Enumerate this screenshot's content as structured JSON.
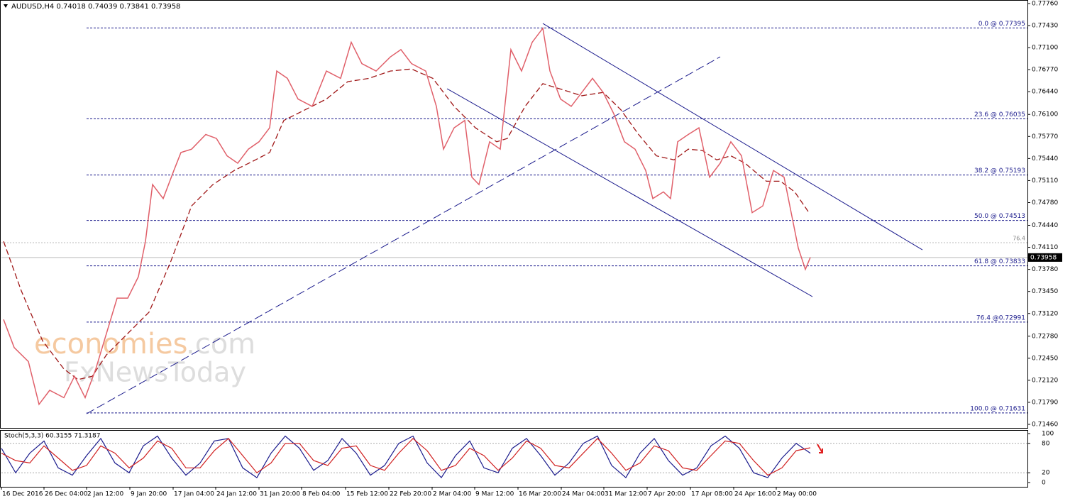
{
  "chart_data": [
    {
      "type": "line",
      "title": "AUDUSD,H4  0.74018 0.74039 0.73841 0.73958",
      "color": "#e0606a",
      "xlim": [
        0,
        1446
      ],
      "ylim": [
        0.71407,
        0.77813
      ],
      "yticks": [
        {
          "value": 0.7776,
          "label": "0.77760"
        },
        {
          "value": 0.7743,
          "label": "0.77430"
        },
        {
          "value": 0.771,
          "label": "0.77100"
        },
        {
          "value": 0.7677,
          "label": "0.76770"
        },
        {
          "value": 0.7644,
          "label": "0.76440"
        },
        {
          "value": 0.761,
          "label": "0.76100"
        },
        {
          "value": 0.7577,
          "label": "0.75770"
        },
        {
          "value": 0.7544,
          "label": "0.75440"
        },
        {
          "value": 0.7511,
          "label": "0.75110"
        },
        {
          "value": 0.7478,
          "label": "0.74780"
        },
        {
          "value": 0.7444,
          "label": "0.74440"
        },
        {
          "value": 0.7411,
          "label": "0.74110"
        },
        {
          "value": 0.7378,
          "label": "0.73780"
        },
        {
          "value": 0.7345,
          "label": "0.73450"
        },
        {
          "value": 0.7312,
          "label": "0.73120"
        },
        {
          "value": 0.7278,
          "label": "0.72780"
        },
        {
          "value": 0.7245,
          "label": "0.72450"
        },
        {
          "value": 0.7212,
          "label": "0.72120"
        },
        {
          "value": 0.7179,
          "label": "0.71790"
        },
        {
          "value": 0.7146,
          "label": "0.71460"
        }
      ],
      "x": [
        3,
        18,
        38,
        53,
        68,
        88,
        103,
        118,
        133,
        148,
        163,
        178,
        193,
        203,
        213,
        228,
        243,
        253,
        268,
        288,
        303,
        318,
        333,
        348,
        363,
        378,
        388,
        403,
        418,
        438,
        458,
        478,
        493,
        508,
        528,
        548,
        563,
        578,
        598,
        613,
        623,
        638,
        653,
        663,
        673,
        688,
        703,
        718,
        733,
        748,
        763,
        773,
        788,
        803,
        818,
        833,
        848,
        863,
        878,
        893,
        908,
        918,
        933,
        943,
        953,
        968,
        983,
        998,
        1013,
        1028,
        1043,
        1058,
        1073,
        1088,
        1103,
        1113,
        1123,
        1133,
        1140
      ],
      "values": [
        0.7303,
        0.7261,
        0.724,
        0.7176,
        0.7197,
        0.7186,
        0.7218,
        0.7186,
        0.7229,
        0.7282,
        0.7335,
        0.7335,
        0.7367,
        0.742,
        0.7505,
        0.7484,
        0.7526,
        0.7553,
        0.7558,
        0.758,
        0.7574,
        0.7548,
        0.7537,
        0.7558,
        0.7569,
        0.759,
        0.7675,
        0.7664,
        0.7633,
        0.7622,
        0.7675,
        0.7664,
        0.7718,
        0.7686,
        0.7675,
        0.7696,
        0.7707,
        0.7686,
        0.7675,
        0.7622,
        0.7558,
        0.759,
        0.7601,
        0.7516,
        0.7505,
        0.7569,
        0.7558,
        0.7707,
        0.7675,
        0.7718,
        0.7739,
        0.7675,
        0.7633,
        0.7622,
        0.7643,
        0.7664,
        0.7643,
        0.7611,
        0.7569,
        0.7558,
        0.7526,
        0.7484,
        0.7494,
        0.7484,
        0.7569,
        0.758,
        0.759,
        0.7516,
        0.7537,
        0.7569,
        0.7548,
        0.7463,
        0.7473,
        0.7526,
        0.7516,
        0.7463,
        0.741,
        0.7378,
        0.7396
      ],
      "ma": {
        "color": "#a01818",
        "style": "dashed",
        "x": [
          3,
          28,
          58,
          88,
          108,
          128,
          148,
          178,
          208,
          238,
          268,
          298,
          328,
          358,
          378,
          398,
          428,
          458,
          488,
          518,
          548,
          578,
          608,
          638,
          668,
          698,
          713,
          738,
          763,
          788,
          818,
          848,
          873,
          898,
          923,
          948,
          968,
          988,
          1008,
          1028,
          1048,
          1078,
          1098,
          1118,
          1138
        ],
        "values": [
          0.742,
          0.7346,
          0.7271,
          0.7229,
          0.7213,
          0.7218,
          0.725,
          0.7282,
          0.7314,
          0.7388,
          0.7473,
          0.7505,
          0.7526,
          0.7542,
          0.7553,
          0.7601,
          0.7617,
          0.7633,
          0.7659,
          0.7664,
          0.7675,
          0.7678,
          0.7664,
          0.7622,
          0.759,
          0.7569,
          0.7574,
          0.7622,
          0.7656,
          0.7648,
          0.7638,
          0.7643,
          0.7617,
          0.758,
          0.7548,
          0.7542,
          0.7558,
          0.7556,
          0.7542,
          0.7548,
          0.7537,
          0.751,
          0.751,
          0.7494,
          0.7463
        ]
      },
      "fib_levels": [
        {
          "value": 0.77395,
          "label": "0.0 @ 0.77395"
        },
        {
          "value": 0.76035,
          "label": "23.6 @ 0.76035"
        },
        {
          "value": 0.75193,
          "label": "38.2 @ 0.75193"
        },
        {
          "value": 0.74513,
          "label": "50.0 @ 0.74513"
        },
        {
          "value": 0.73833,
          "label": "61.8 @ 0.73833"
        },
        {
          "value": 0.72991,
          "label": "76.4 @0.72991"
        },
        {
          "value": 0.71631,
          "label": "100.0 @ 0.71631"
        }
      ],
      "fib_color": "#1a1a8c",
      "trendlines": [
        {
          "x": [
            763,
            1298
          ],
          "y": [
            0.77462,
            0.74073
          ],
          "style": "solid"
        },
        {
          "x": [
            628,
            1143
          ],
          "y": [
            0.76485,
            0.73372
          ],
          "style": "solid"
        },
        {
          "x": [
            120,
            1013
          ],
          "y": [
            0.71619,
            0.76963
          ],
          "style": "dashed"
        }
      ],
      "marker_line": {
        "value": 0.7418,
        "label": "76.4"
      },
      "current_price": {
        "value": 0.73958,
        "label": "0.73958"
      },
      "watermark": [
        "economies",
        ".com",
        "FxNewsToday"
      ]
    },
    {
      "type": "line",
      "title": "Stoch(5,3,3) 60.3155 71.3187",
      "ylim": [
        0,
        100
      ],
      "yticks": [
        100,
        80,
        20,
        0
      ],
      "levels": [
        80,
        20
      ],
      "xlim": [
        0,
        1446
      ],
      "xticks": [
        {
          "value": 0,
          "label": "16 Dec 2016"
        },
        {
          "value": 60,
          "label": "26 Dec 04:00"
        },
        {
          "value": 120,
          "label": "2 Jan 12:00"
        },
        {
          "value": 181,
          "label": "9 Jan 20:00"
        },
        {
          "value": 242,
          "label": "17 Jan 04:00"
        },
        {
          "value": 302,
          "label": "24 Jan 12:00"
        },
        {
          "value": 363,
          "label": "31 Jan 20:00"
        },
        {
          "value": 423,
          "label": "8 Feb 04:00"
        },
        {
          "value": 485,
          "label": "15 Feb 12:00"
        },
        {
          "value": 546,
          "label": "22 Feb 20:00"
        },
        {
          "value": 607,
          "label": "2 Mar 04:00"
        },
        {
          "value": 667,
          "label": "9 Mar 12:00"
        },
        {
          "value": 728,
          "label": "16 Mar 20:00"
        },
        {
          "value": 789,
          "label": "24 Mar 04:00"
        },
        {
          "value": 849,
          "label": "31 Mar 12:00"
        },
        {
          "value": 910,
          "label": "7 Apr 20:00"
        },
        {
          "value": 971,
          "label": "17 Apr 08:00"
        },
        {
          "value": 1032,
          "label": "24 Apr 16:00"
        },
        {
          "value": 1092,
          "label": "2 May 00:00"
        }
      ],
      "x": [
        0,
        20,
        40,
        60,
        80,
        100,
        120,
        140,
        160,
        180,
        200,
        220,
        240,
        260,
        280,
        300,
        320,
        340,
        360,
        380,
        400,
        420,
        440,
        460,
        480,
        500,
        520,
        540,
        560,
        580,
        600,
        620,
        640,
        660,
        680,
        700,
        720,
        740,
        760,
        780,
        800,
        820,
        840,
        860,
        880,
        900,
        920,
        940,
        960,
        980,
        1000,
        1020,
        1040,
        1060,
        1080,
        1100,
        1120,
        1140
      ],
      "series": [
        {
          "color": "#1a1a8c",
          "values": [
            70,
            20,
            60,
            85,
            30,
            15,
            55,
            90,
            40,
            20,
            75,
            95,
            50,
            15,
            40,
            85,
            90,
            30,
            10,
            60,
            95,
            70,
            25,
            45,
            90,
            60,
            15,
            35,
            80,
            95,
            40,
            10,
            55,
            85,
            30,
            20,
            70,
            90,
            55,
            15,
            40,
            80,
            95,
            35,
            10,
            60,
            90,
            45,
            15,
            30,
            75,
            95,
            70,
            20,
            10,
            50,
            80,
            60
          ]
        },
        {
          "color": "#d02020",
          "values": [
            60,
            45,
            40,
            75,
            50,
            25,
            35,
            75,
            60,
            30,
            50,
            85,
            70,
            30,
            30,
            65,
            90,
            55,
            20,
            40,
            80,
            80,
            45,
            35,
            70,
            75,
            35,
            25,
            60,
            90,
            65,
            25,
            35,
            70,
            55,
            25,
            50,
            85,
            70,
            35,
            30,
            60,
            90,
            60,
            25,
            40,
            75,
            65,
            30,
            25,
            55,
            85,
            80,
            45,
            15,
            30,
            65,
            71
          ]
        }
      ]
    }
  ]
}
